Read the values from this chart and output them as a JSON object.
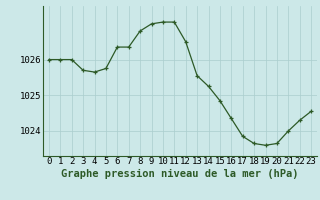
{
  "x": [
    0,
    1,
    2,
    3,
    4,
    5,
    6,
    7,
    8,
    9,
    10,
    11,
    12,
    13,
    14,
    15,
    16,
    17,
    18,
    19,
    20,
    21,
    22,
    23
  ],
  "y": [
    1026.0,
    1026.0,
    1026.0,
    1025.7,
    1025.65,
    1025.75,
    1026.35,
    1026.35,
    1026.8,
    1027.0,
    1027.05,
    1027.05,
    1026.5,
    1025.55,
    1025.25,
    1024.85,
    1024.35,
    1023.85,
    1023.65,
    1023.6,
    1023.65,
    1024.0,
    1024.3,
    1024.55
  ],
  "line_color": "#2d5a27",
  "marker": "+",
  "bg_color": "#cce8e8",
  "grid_color": "#aacece",
  "ylabel_ticks": [
    1024,
    1025,
    1026
  ],
  "xlabel": "Graphe pression niveau de la mer (hPa)",
  "ylim_min": 1023.3,
  "ylim_max": 1027.5,
  "tick_fontsize": 6.5,
  "xlabel_fontsize": 7.5
}
